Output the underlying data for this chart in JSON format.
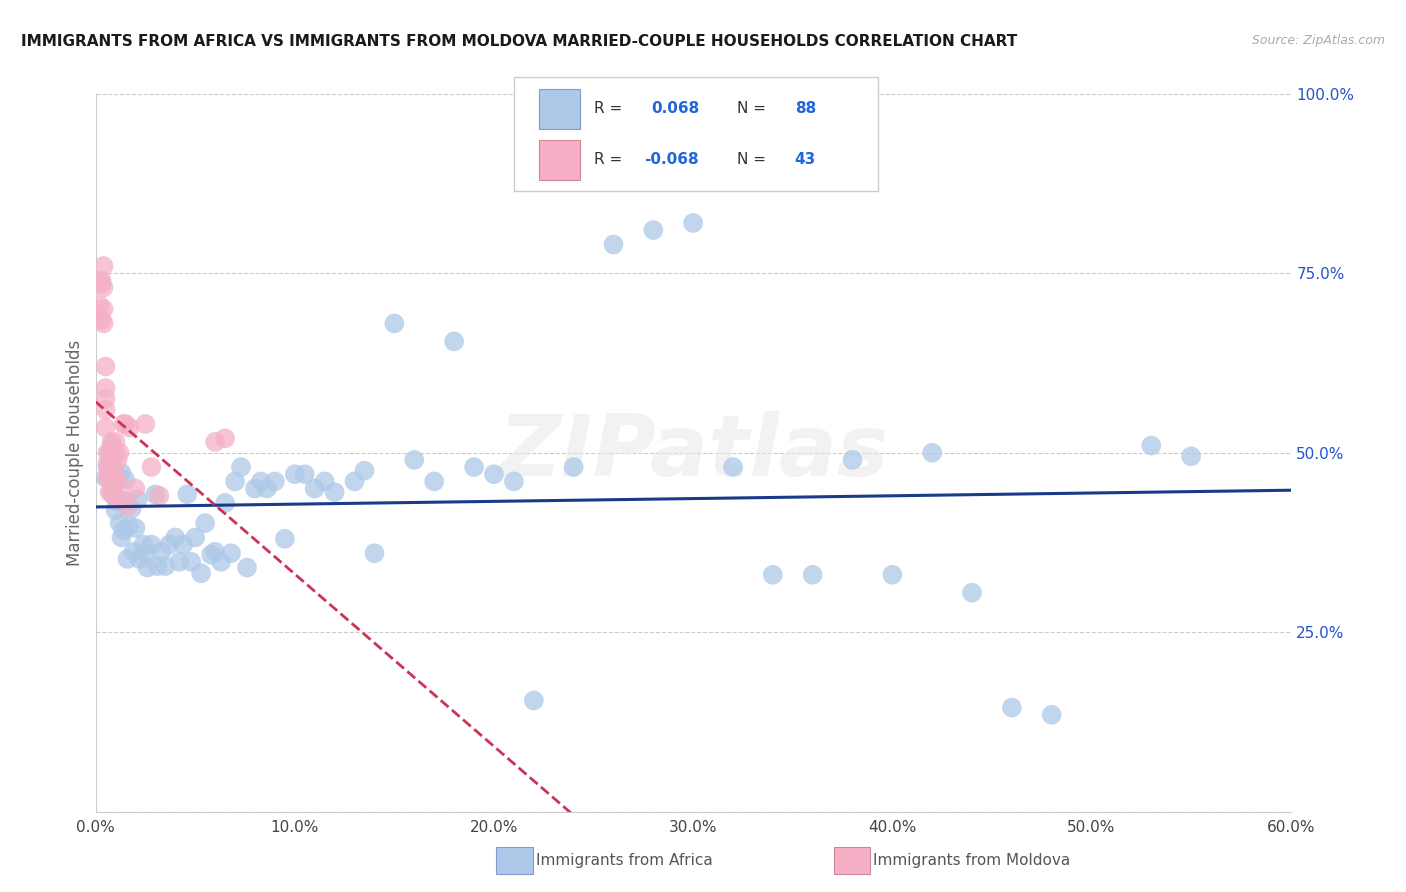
{
  "title": "IMMIGRANTS FROM AFRICA VS IMMIGRANTS FROM MOLDOVA MARRIED-COUPLE HOUSEHOLDS CORRELATION CHART",
  "source": "Source: ZipAtlas.com",
  "ylabel": "Married-couple Households",
  "xmin": 0.0,
  "xmax": 0.6,
  "ymin": 0.0,
  "ymax": 1.0,
  "xticks": [
    0.0,
    0.1,
    0.2,
    0.3,
    0.4,
    0.5,
    0.6
  ],
  "xtick_labels": [
    "0.0%",
    "10.0%",
    "20.0%",
    "30.0%",
    "40.0%",
    "50.0%",
    "60.0%"
  ],
  "yticks": [
    0.0,
    0.25,
    0.5,
    0.75,
    1.0
  ],
  "ytick_labels": [
    "",
    "25.0%",
    "50.0%",
    "75.0%",
    "100.0%"
  ],
  "blue_R": "0.068",
  "blue_N": "88",
  "pink_R": "-0.068",
  "pink_N": "43",
  "blue_color": "#adc8e8",
  "pink_color": "#f5b0c5",
  "blue_line_color": "#1a3a8a",
  "pink_line_color": "#cc3355",
  "legend_blue_label": "Immigrants from Africa",
  "legend_pink_label": "Immigrants from Moldova",
  "watermark": "ZIPatlas",
  "blue_scatter_x": [
    0.005,
    0.006,
    0.007,
    0.007,
    0.008,
    0.008,
    0.009,
    0.009,
    0.01,
    0.01,
    0.01,
    0.011,
    0.011,
    0.012,
    0.012,
    0.013,
    0.013,
    0.014,
    0.015,
    0.015,
    0.016,
    0.017,
    0.018,
    0.019,
    0.02,
    0.021,
    0.022,
    0.024,
    0.025,
    0.026,
    0.028,
    0.03,
    0.031,
    0.033,
    0.035,
    0.037,
    0.04,
    0.042,
    0.044,
    0.046,
    0.048,
    0.05,
    0.053,
    0.055,
    0.058,
    0.06,
    0.063,
    0.065,
    0.068,
    0.07,
    0.073,
    0.076,
    0.08,
    0.083,
    0.086,
    0.09,
    0.095,
    0.1,
    0.105,
    0.11,
    0.115,
    0.12,
    0.13,
    0.135,
    0.14,
    0.15,
    0.16,
    0.17,
    0.18,
    0.19,
    0.2,
    0.21,
    0.22,
    0.24,
    0.26,
    0.28,
    0.3,
    0.32,
    0.34,
    0.36,
    0.38,
    0.4,
    0.42,
    0.44,
    0.46,
    0.48,
    0.53,
    0.55
  ],
  "blue_scatter_y": [
    0.465,
    0.48,
    0.49,
    0.5,
    0.51,
    0.445,
    0.442,
    0.458,
    0.472,
    0.44,
    0.42,
    0.432,
    0.462,
    0.402,
    0.432,
    0.472,
    0.382,
    0.392,
    0.432,
    0.462,
    0.352,
    0.398,
    0.422,
    0.362,
    0.395,
    0.435,
    0.352,
    0.372,
    0.36,
    0.34,
    0.372,
    0.442,
    0.342,
    0.362,
    0.342,
    0.372,
    0.382,
    0.348,
    0.372,
    0.442,
    0.348,
    0.382,
    0.332,
    0.402,
    0.358,
    0.362,
    0.348,
    0.43,
    0.36,
    0.46,
    0.48,
    0.34,
    0.45,
    0.46,
    0.45,
    0.46,
    0.38,
    0.47,
    0.47,
    0.45,
    0.46,
    0.445,
    0.46,
    0.475,
    0.36,
    0.68,
    0.49,
    0.46,
    0.655,
    0.48,
    0.47,
    0.46,
    0.155,
    0.48,
    0.79,
    0.81,
    0.82,
    0.48,
    0.33,
    0.33,
    0.49,
    0.33,
    0.5,
    0.305,
    0.145,
    0.135,
    0.51,
    0.495
  ],
  "pink_scatter_x": [
    0.002,
    0.002,
    0.003,
    0.003,
    0.003,
    0.004,
    0.004,
    0.004,
    0.004,
    0.005,
    0.005,
    0.005,
    0.005,
    0.005,
    0.006,
    0.006,
    0.006,
    0.007,
    0.007,
    0.007,
    0.008,
    0.008,
    0.008,
    0.009,
    0.009,
    0.009,
    0.01,
    0.01,
    0.01,
    0.011,
    0.011,
    0.012,
    0.013,
    0.014,
    0.015,
    0.016,
    0.017,
    0.02,
    0.025,
    0.028,
    0.032,
    0.06,
    0.065
  ],
  "pink_scatter_y": [
    0.685,
    0.705,
    0.735,
    0.685,
    0.74,
    0.73,
    0.76,
    0.68,
    0.7,
    0.535,
    0.575,
    0.62,
    0.59,
    0.56,
    0.465,
    0.485,
    0.5,
    0.445,
    0.475,
    0.465,
    0.49,
    0.515,
    0.46,
    0.46,
    0.44,
    0.475,
    0.5,
    0.46,
    0.515,
    0.46,
    0.49,
    0.5,
    0.435,
    0.54,
    0.54,
    0.425,
    0.535,
    0.45,
    0.54,
    0.48,
    0.44,
    0.515,
    0.52
  ]
}
